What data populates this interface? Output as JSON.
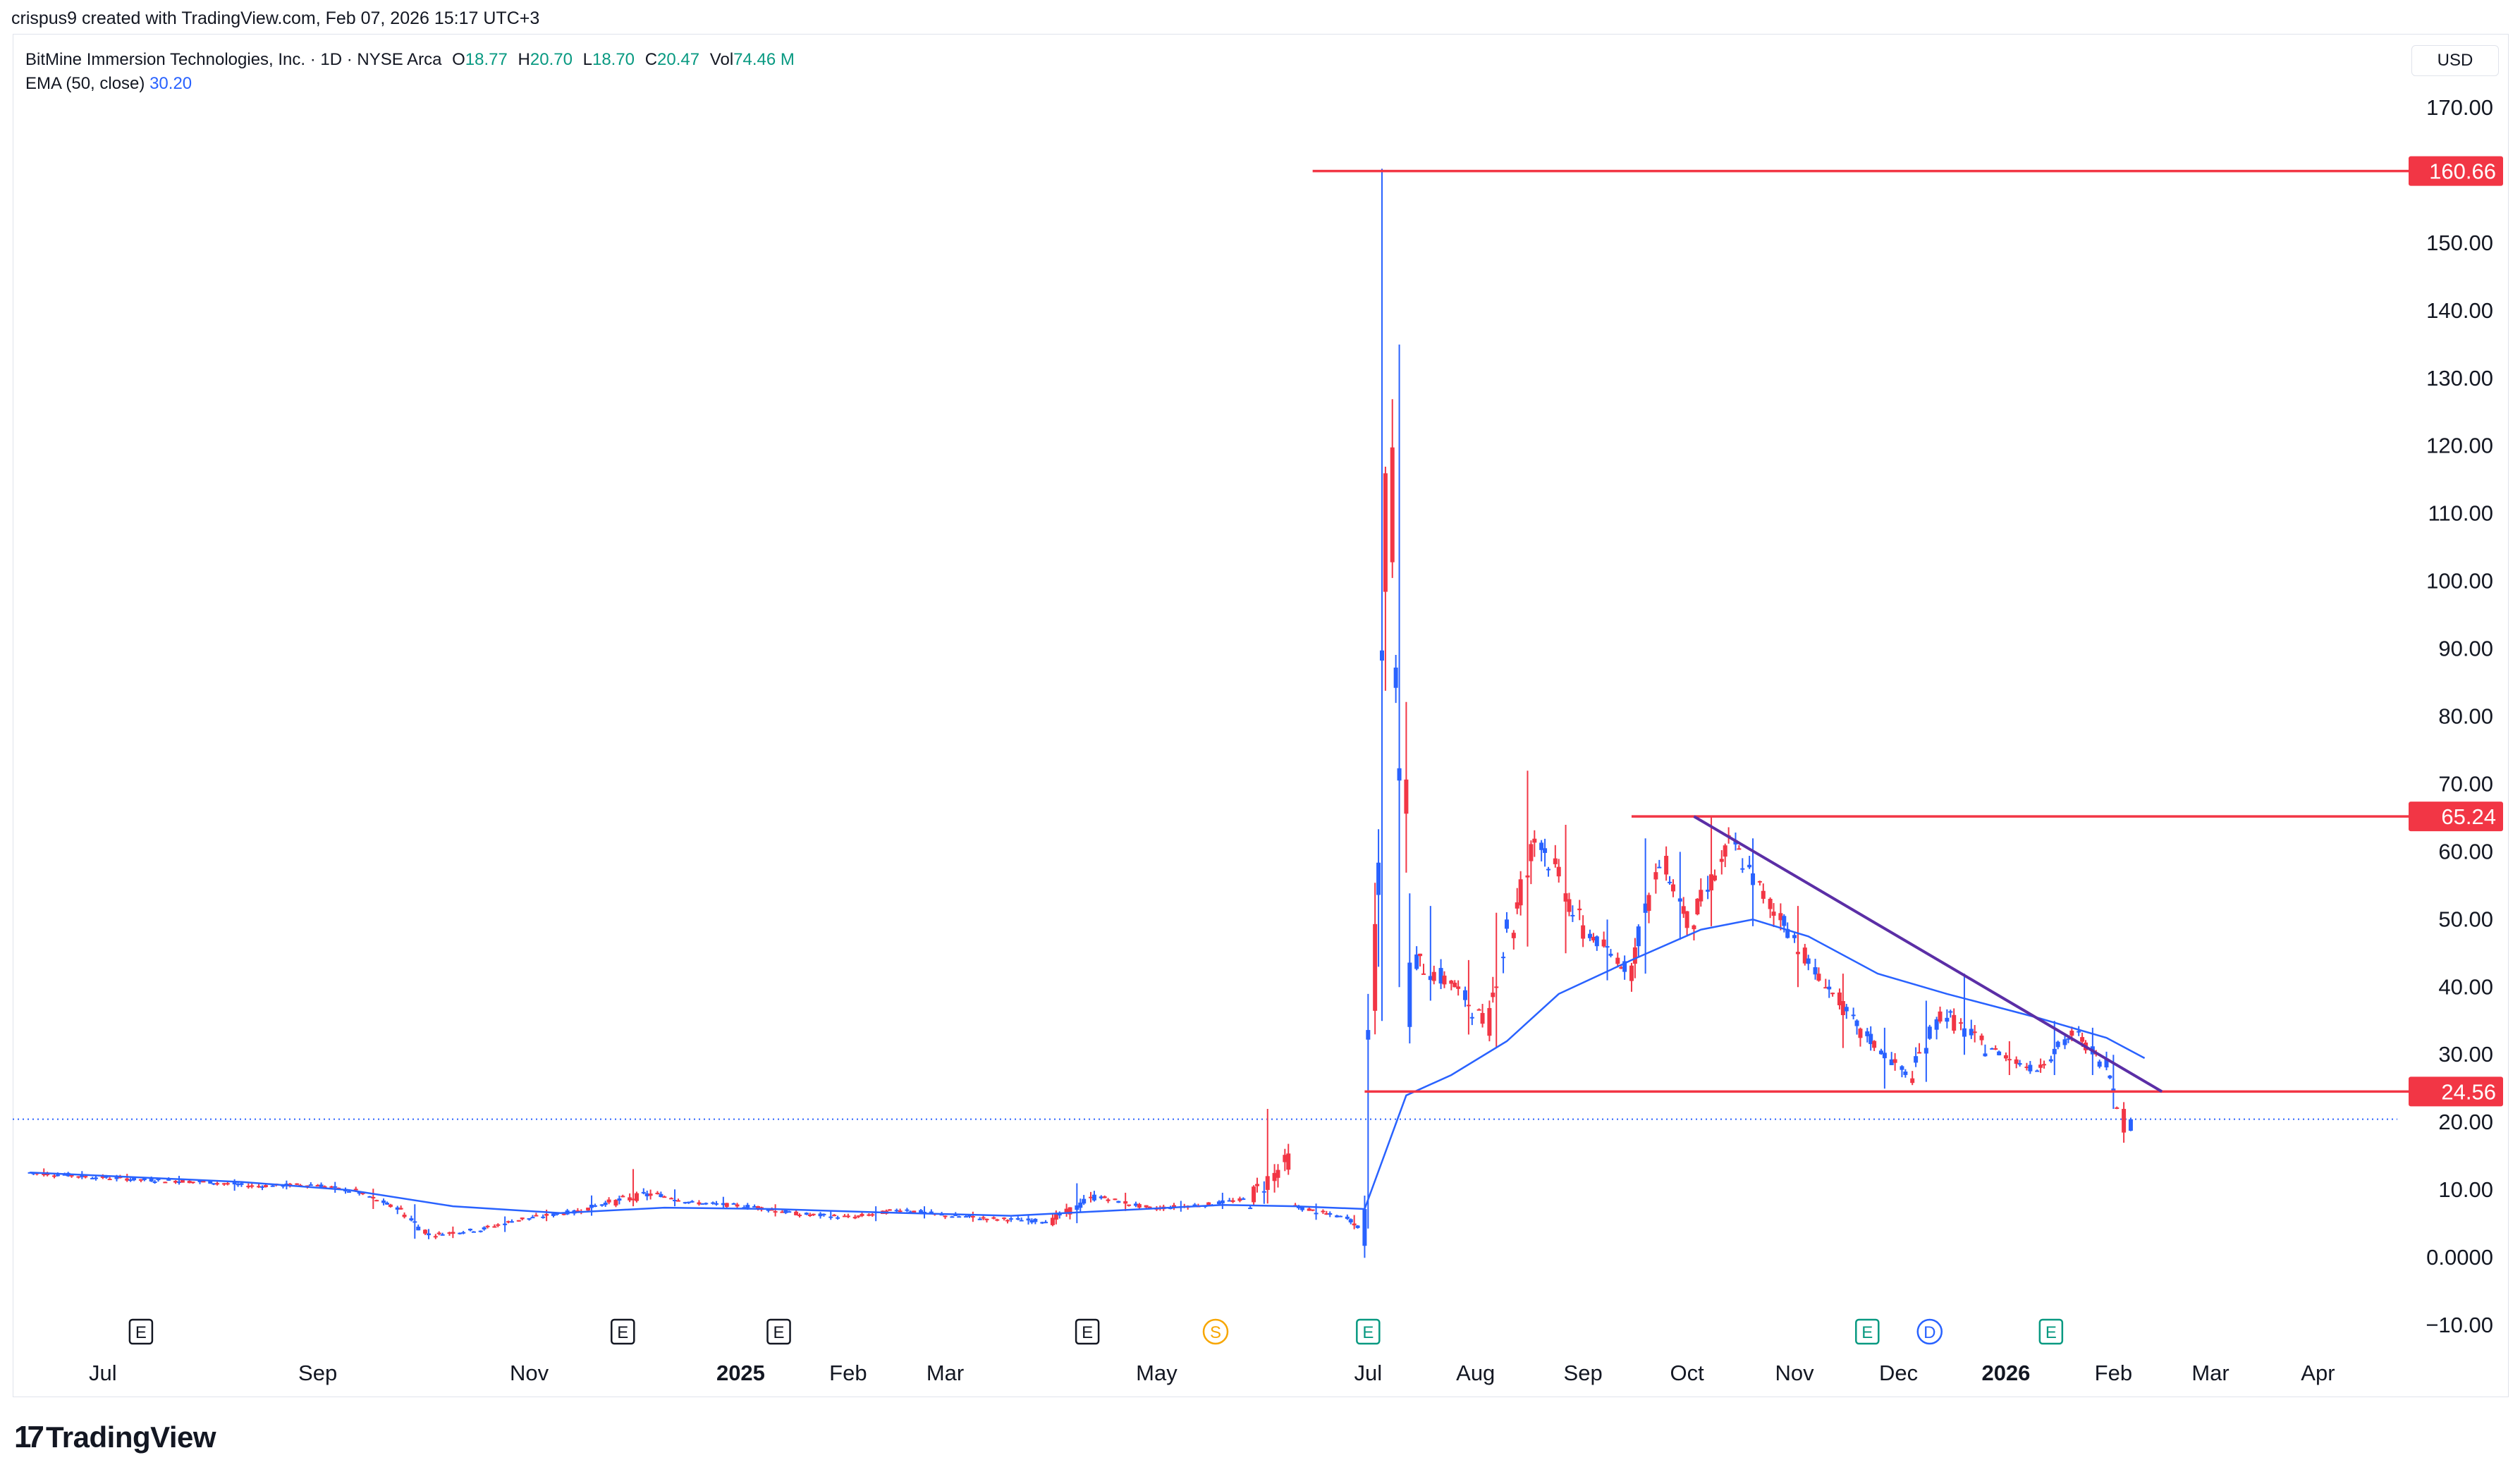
{
  "attribution": "crispus9 created with TradingView.com, Feb 07, 2026 15:17 UTC+3",
  "legend": {
    "symbol": "BitMine Immersion Technologies, Inc. · 1D · NYSE Arca",
    "o_label": "O",
    "o": "18.77",
    "h_label": "H",
    "h": "20.70",
    "l_label": "L",
    "l": "18.70",
    "c_label": "C",
    "c": "20.47",
    "vol_label": "Vol",
    "vol": "74.46 M",
    "ema_label": "EMA (50, close)",
    "ema_value": "30.20"
  },
  "currency": "USD",
  "brand": "TradingView",
  "colors": {
    "up": "#2962ff",
    "down": "#f23645",
    "ema": "#2962ff",
    "level": "#f23645",
    "trend": "#5b2ea6",
    "event_e": "#089981",
    "event_s": "#f7a600",
    "event_d": "#2962ff"
  },
  "chart_data": {
    "type": "candlestick",
    "ylim": [
      -10,
      175
    ],
    "y_ticks": [
      170,
      160,
      150,
      140,
      130,
      120,
      110,
      100,
      90,
      80,
      70,
      60,
      50,
      40,
      30,
      20,
      10,
      0,
      -10
    ],
    "y_tick_labels": [
      "170.00",
      "160.00",
      "150.00",
      "140.00",
      "130.00",
      "120.00",
      "110.00",
      "100.00",
      "90.00",
      "80.00",
      "70.00",
      "60.00",
      "50.00",
      "40.00",
      "30.00",
      "20.00",
      "10.00",
      "0.0000",
      "−10.00"
    ],
    "x_ticks": [
      {
        "label": "Jul",
        "date": "2024-07-01",
        "bold": false
      },
      {
        "label": "Sep",
        "date": "2024-09-01",
        "bold": false
      },
      {
        "label": "Nov",
        "date": "2024-11-01",
        "bold": false
      },
      {
        "label": "2025",
        "date": "2025-01-01",
        "bold": true
      },
      {
        "label": "Feb",
        "date": "2025-02-01",
        "bold": false
      },
      {
        "label": "Mar",
        "date": "2025-03-01",
        "bold": false
      },
      {
        "label": "May",
        "date": "2025-05-01",
        "bold": false
      },
      {
        "label": "Jul",
        "date": "2025-07-01",
        "bold": false
      },
      {
        "label": "Aug",
        "date": "2025-08-01",
        "bold": false
      },
      {
        "label": "Sep",
        "date": "2025-09-01",
        "bold": false
      },
      {
        "label": "Oct",
        "date": "2025-10-01",
        "bold": false
      },
      {
        "label": "Nov",
        "date": "2025-11-01",
        "bold": false
      },
      {
        "label": "Dec",
        "date": "2025-12-01",
        "bold": false
      },
      {
        "label": "2026",
        "date": "2026-01-01",
        "bold": true
      },
      {
        "label": "Feb",
        "date": "2026-02-01",
        "bold": false
      },
      {
        "label": "Mar",
        "date": "2026-03-01",
        "bold": false
      },
      {
        "label": "Apr",
        "date": "2026-04-01",
        "bold": false
      }
    ],
    "price_levels": [
      {
        "value": 160.66,
        "label": "160.66",
        "from": "2025-06-15"
      },
      {
        "value": 65.24,
        "label": "65.24",
        "from": "2025-09-15"
      },
      {
        "value": 24.56,
        "label": "24.56",
        "from": "2025-06-30"
      }
    ],
    "last_price": 20.47,
    "trendline": [
      {
        "date": "2025-10-03",
        "value": 65.24
      },
      {
        "date": "2026-02-15",
        "value": 24.56
      }
    ],
    "events": [
      {
        "type": "E",
        "date": "2024-07-12"
      },
      {
        "type": "E",
        "date": "2024-11-28"
      },
      {
        "type": "E",
        "date": "2025-01-12"
      },
      {
        "type": "E",
        "date": "2025-04-11"
      },
      {
        "type": "S",
        "date": "2025-05-18"
      },
      {
        "type": "E",
        "date": "2025-07-01"
      },
      {
        "type": "E",
        "date": "2025-11-22"
      },
      {
        "type": "D",
        "date": "2025-12-10"
      },
      {
        "type": "E",
        "date": "2026-01-14"
      }
    ],
    "ohlc_daily_approx": [
      [
        "2024-06-10",
        12.6,
        13.2,
        12.0,
        12.3
      ],
      [
        "2024-06-20",
        12.3,
        12.8,
        11.6,
        11.9
      ],
      [
        "2024-07-01",
        11.9,
        12.4,
        11.2,
        11.5
      ],
      [
        "2024-07-15",
        11.5,
        12.1,
        10.8,
        11.2
      ],
      [
        "2024-08-01",
        11.2,
        11.6,
        9.9,
        10.6
      ],
      [
        "2024-08-15",
        10.6,
        11.4,
        10.1,
        10.8
      ],
      [
        "2024-09-01",
        10.8,
        11.2,
        9.6,
        9.9
      ],
      [
        "2024-09-12",
        9.9,
        10.2,
        7.2,
        7.6
      ],
      [
        "2024-09-24",
        7.6,
        7.9,
        2.8,
        3.4
      ],
      [
        "2024-10-05",
        3.4,
        4.6,
        2.9,
        4.1
      ],
      [
        "2024-10-18",
        4.1,
        6.1,
        3.8,
        5.8
      ],
      [
        "2024-11-01",
        5.8,
        7.1,
        5.4,
        6.7
      ],
      [
        "2024-11-14",
        6.7,
        9.2,
        6.2,
        8.3
      ],
      [
        "2024-11-26",
        8.3,
        13.1,
        7.6,
        9.4
      ],
      [
        "2024-12-08",
        9.4,
        10.1,
        7.6,
        8.1
      ],
      [
        "2024-12-20",
        8.1,
        9.0,
        7.3,
        7.6
      ],
      [
        "2025-01-05",
        7.6,
        7.9,
        6.1,
        6.4
      ],
      [
        "2025-01-20",
        6.4,
        6.9,
        5.6,
        6.0
      ],
      [
        "2025-02-03",
        6.0,
        7.6,
        5.4,
        7.1
      ],
      [
        "2025-02-18",
        7.1,
        7.6,
        5.8,
        6.2
      ],
      [
        "2025-03-03",
        6.2,
        6.8,
        5.3,
        5.7
      ],
      [
        "2025-03-18",
        5.7,
        6.2,
        4.9,
        5.4
      ],
      [
        "2025-04-01",
        5.4,
        11.0,
        5.1,
        9.0
      ],
      [
        "2025-04-15",
        9.0,
        9.6,
        6.9,
        7.3
      ],
      [
        "2025-05-01",
        7.3,
        8.4,
        6.8,
        7.8
      ],
      [
        "2025-05-15",
        7.8,
        9.6,
        7.2,
        8.6
      ],
      [
        "2025-05-28",
        8.6,
        22.0,
        8.0,
        14.5
      ],
      [
        "2025-06-10",
        7.6,
        8.0,
        5.6,
        6.0
      ],
      [
        "2025-06-25",
        6.0,
        6.3,
        4.2,
        4.5
      ],
      [
        "2025-06-30",
        4.4,
        39.0,
        4.3,
        36.0
      ],
      [
        "2025-07-03",
        36.0,
        161.0,
        35.0,
        110.0
      ],
      [
        "2025-07-08",
        110.0,
        135.0,
        40.0,
        44.0
      ],
      [
        "2025-07-15",
        44.0,
        52.0,
        38.0,
        41.0
      ],
      [
        "2025-07-25",
        41.0,
        44.0,
        33.0,
        35.0
      ],
      [
        "2025-08-05",
        35.0,
        51.0,
        31.0,
        49.0
      ],
      [
        "2025-08-12",
        49.0,
        72.0,
        46.0,
        62.0
      ],
      [
        "2025-08-20",
        62.0,
        64.0,
        45.0,
        48.0
      ],
      [
        "2025-09-03",
        48.0,
        50.0,
        41.0,
        43.0
      ],
      [
        "2025-09-15",
        43.0,
        62.0,
        42.0,
        58.0
      ],
      [
        "2025-09-25",
        58.0,
        60.0,
        47.0,
        50.0
      ],
      [
        "2025-10-03",
        50.0,
        65.24,
        49.0,
        61.0
      ],
      [
        "2025-10-15",
        61.0,
        62.0,
        49.0,
        51.0
      ],
      [
        "2025-10-28",
        51.0,
        52.0,
        40.0,
        41.0
      ],
      [
        "2025-11-10",
        41.0,
        42.0,
        31.0,
        33.0
      ],
      [
        "2025-11-22",
        33.0,
        34.0,
        25.0,
        27.0
      ],
      [
        "2025-12-05",
        27.0,
        38.0,
        26.0,
        36.0
      ],
      [
        "2025-12-15",
        36.0,
        42.0,
        30.0,
        31.0
      ],
      [
        "2025-12-28",
        31.0,
        32.0,
        27.0,
        28.0
      ],
      [
        "2026-01-10",
        28.0,
        35.0,
        27.0,
        33.0
      ],
      [
        "2026-01-22",
        33.0,
        34.0,
        27.0,
        29.0
      ],
      [
        "2026-01-30",
        29.0,
        30.0,
        22.0,
        23.0
      ],
      [
        "2026-02-04",
        22.0,
        23.0,
        17.0,
        18.5
      ],
      [
        "2026-02-06",
        18.77,
        20.7,
        18.7,
        20.47
      ]
    ],
    "ema_50_approx": [
      [
        "2024-06-10",
        12.6
      ],
      [
        "2024-08-10",
        11.2
      ],
      [
        "2024-09-10",
        10.0
      ],
      [
        "2024-10-10",
        7.6
      ],
      [
        "2024-11-10",
        6.6
      ],
      [
        "2024-12-10",
        7.4
      ],
      [
        "2025-01-10",
        7.2
      ],
      [
        "2025-02-10",
        6.7
      ],
      [
        "2025-03-20",
        6.2
      ],
      [
        "2025-04-20",
        7.0
      ],
      [
        "2025-05-20",
        7.8
      ],
      [
        "2025-06-10",
        7.6
      ],
      [
        "2025-06-30",
        7.2
      ],
      [
        "2025-07-12",
        24.0
      ],
      [
        "2025-07-25",
        27.0
      ],
      [
        "2025-08-10",
        32.0
      ],
      [
        "2025-08-25",
        39.0
      ],
      [
        "2025-09-15",
        44.0
      ],
      [
        "2025-10-05",
        48.5
      ],
      [
        "2025-10-20",
        50.0
      ],
      [
        "2025-11-05",
        47.5
      ],
      [
        "2025-11-25",
        42.0
      ],
      [
        "2025-12-15",
        39.0
      ],
      [
        "2026-01-10",
        35.5
      ],
      [
        "2026-01-30",
        32.5
      ],
      [
        "2026-02-10",
        29.5
      ]
    ]
  }
}
